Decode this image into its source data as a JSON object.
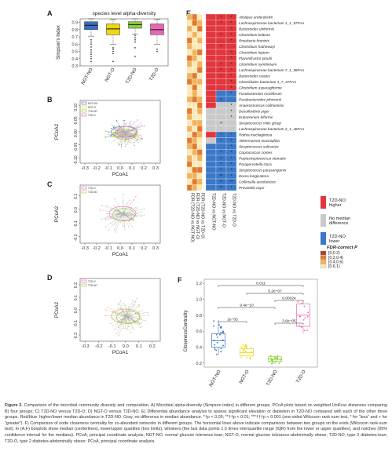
{
  "panel_letters": {
    "a": "A",
    "b": "B",
    "c": "C",
    "d": "D",
    "e": "E",
    "f": "F"
  },
  "colors": {
    "ngt_no": "#3b6fbf",
    "ngt_o": "#f1d60f",
    "t2d_no": "#8ccd3c",
    "t2d_o": "#ea66b4",
    "heat_red": "#e0363d",
    "heat_gray": "#c9c9c9",
    "heat_blue": "#3b78c8"
  },
  "chart_data": [
    {
      "id": "A",
      "type": "box",
      "title": "species level alpha-diversity",
      "ylabel": "Simpson's Index",
      "categories": [
        "NGT-NO",
        "NGT-O",
        "T2D-NO",
        "T2D-O"
      ],
      "ylim": [
        0.3,
        0.95
      ],
      "yticks": [
        "0.3",
        "0.4",
        "0.5",
        "0.6",
        "0.7",
        "0.8",
        "0.9"
      ],
      "boxes": [
        {
          "q1": 0.8,
          "median": 0.86,
          "q3": 0.91,
          "lo": 0.71,
          "hi": 0.95,
          "outliers": [
            0.66,
            0.63,
            0.6,
            0.56,
            0.52,
            0.49,
            0.46,
            0.43,
            0.4,
            0.36
          ]
        },
        {
          "q1": 0.73,
          "median": 0.81,
          "q3": 0.88,
          "lo": 0.6,
          "hi": 0.94,
          "outliers": [
            0.55,
            0.53,
            0.5,
            0.47,
            0.36
          ]
        },
        {
          "q1": 0.82,
          "median": 0.87,
          "q3": 0.91,
          "lo": 0.74,
          "hi": 0.95,
          "outliers": [
            0.72,
            0.69,
            0.66,
            0.63,
            0.55,
            0.43
          ]
        },
        {
          "q1": 0.73,
          "median": 0.8,
          "q3": 0.88,
          "lo": 0.6,
          "hi": 0.94,
          "outliers": [
            0.53,
            0.5
          ]
        }
      ]
    },
    {
      "id": "B",
      "type": "scatter",
      "xlabel": "PCoA1",
      "ylabel": "PCoA2",
      "xticks": [
        "-0.3",
        "-0.2",
        "-0.1",
        "0.0",
        "0.1",
        "0.2",
        "0.3"
      ],
      "yticks": [
        "-0.10",
        "-0.05",
        "0.00",
        "0.05",
        "0.10"
      ],
      "legend": [
        "NGT-NO",
        "NGT-O",
        "T2D-NO",
        "T2D-O"
      ]
    },
    {
      "id": "C",
      "type": "scatter",
      "xlabel": "PCoA1",
      "ylabel": "PCoA2",
      "xticks": [
        "-0.3",
        "-0.2",
        "-0.1",
        "0.0",
        "0.1",
        "0.2",
        "0.3"
      ],
      "yticks": [
        "-0.2",
        "-0.1",
        "0.0",
        "0.1"
      ],
      "legend": [
        "T2D-O",
        "T2D-NO"
      ]
    },
    {
      "id": "D",
      "type": "scatter",
      "xlabel": "PCoA1",
      "ylabel": "PCoA2",
      "xticks": [
        "-0.3",
        "-0.2",
        "-0.1",
        "0.0",
        "0.1",
        "0.2"
      ],
      "yticks": [
        "-0.2",
        "-0.1",
        "0.0",
        "0.1",
        "0.2"
      ],
      "legend": [
        "T2D-O",
        "T2D-NO"
      ]
    },
    {
      "id": "E",
      "type": "heatmap",
      "rows": [
        "Alistipes onderdonkii",
        "Lachnospiraceae bacterium 1_1_57FAA",
        "Bacteroides uniformis",
        "Clostridium bolteae",
        "Roseburia hominis",
        "Clostridium hathewayi",
        "Clostridium leptum",
        "Flavonifractor plautii",
        "Clostridium symbiosum",
        "Lachnospiraceae bacterium 7_1_58FAA",
        "Bacteroides ovatus",
        "Clostridiales bacterium 1_7_47FAA",
        "Clostridium asparagiforme",
        "Fusobacterium mortiferum",
        "Parabacteroides johnsonii",
        "Anaerostruncus colihominis",
        "Desulfovibrio piger",
        "Eubacterium biforme",
        "Streptococcus mitis group",
        "Lachnospiraceae bacterium 2_1_46FAA",
        "Rothia mucilaginosa",
        "Akkermansia muciniphila",
        "Streptococcus salivarius",
        "Coprococcus comes",
        "Peptostreptococcus stomatis",
        "Parapervotella clara",
        "Streptococcus parasanguinis",
        "Dorea longicatena",
        "Collinsella aerofaciens",
        "Prevotella copri"
      ],
      "col_labels": [
        "T2D-NO vs NGT-NO",
        "T2D-NO vs NGT-O",
        "T2D-NO vs T2D-O",
        "FDR (T2D-NO vs NGT-NO)",
        "FDR (T2D-NO vs NGT-O)",
        "FDR (T2D-NO vs T2D-O)"
      ],
      "direction": [
        [
          "higher",
          "higher",
          "higher"
        ],
        [
          "higher",
          "higher",
          "higher"
        ],
        [
          "higher",
          "higher",
          "higher"
        ],
        [
          "higher",
          "higher",
          "higher"
        ],
        [
          "higher",
          "higher",
          "higher"
        ],
        [
          "higher",
          "higher",
          "higher"
        ],
        [
          "higher",
          "higher",
          "higher"
        ],
        [
          "higher",
          "higher",
          "higher"
        ],
        [
          "higher",
          "higher",
          "higher"
        ],
        [
          "higher",
          "higher",
          "higher"
        ],
        [
          "higher",
          "higher",
          "higher"
        ],
        [
          "higher",
          "higher",
          "higher"
        ],
        [
          "higher",
          "higher",
          "higher"
        ],
        [
          "higher",
          "lower",
          "lower"
        ],
        [
          "higher",
          "lower",
          "lower"
        ],
        [
          "higher",
          "none",
          "none"
        ],
        [
          "none",
          "none",
          "none"
        ],
        [
          "none",
          "none",
          "none"
        ],
        [
          "none",
          "none",
          "none"
        ],
        [
          "none",
          "none",
          "none"
        ],
        [
          "higher",
          "lower",
          "lower"
        ],
        [
          "none",
          "lower",
          "lower"
        ],
        [
          "lower",
          "lower",
          "lower"
        ],
        [
          "lower",
          "lower",
          "lower"
        ],
        [
          "lower",
          "lower",
          "lower"
        ],
        [
          "lower",
          "lower",
          "lower"
        ],
        [
          "lower",
          "lower",
          "lower"
        ],
        [
          "lower",
          "lower",
          "lower"
        ],
        [
          "lower",
          "lower",
          "lower"
        ],
        [
          "lower",
          "lower",
          "lower"
        ]
      ],
      "stars": [
        [
          "",
          "*",
          "*"
        ],
        [
          "",
          "*",
          "*"
        ],
        [
          "",
          "",
          "*"
        ],
        [
          "",
          "*",
          "*"
        ],
        [
          "",
          "",
          "*"
        ],
        [
          "",
          "*",
          ""
        ],
        [
          "",
          "",
          "*"
        ],
        [
          "",
          "",
          "*"
        ],
        [
          "",
          "*",
          "*"
        ],
        [
          "",
          "*",
          "*"
        ],
        [
          "",
          "*",
          "*"
        ],
        [
          "",
          "",
          "*"
        ],
        [
          "",
          "",
          "*"
        ],
        [
          "",
          "",
          "*"
        ],
        [
          "",
          "+",
          ""
        ],
        [
          "",
          "",
          "*"
        ],
        [
          "",
          "",
          "*"
        ],
        [
          "",
          "",
          "*"
        ],
        [
          "",
          "+",
          ""
        ],
        [
          "",
          "",
          ""
        ],
        [
          "",
          "*",
          "*"
        ],
        [
          "",
          "*",
          "*"
        ],
        [
          "",
          "",
          "*"
        ],
        [
          "",
          "*",
          "*"
        ],
        [
          "",
          "+",
          "*"
        ],
        [
          "",
          "*",
          "*"
        ],
        [
          "",
          "*",
          "*"
        ],
        [
          "",
          "**",
          "*"
        ],
        [
          "",
          "**",
          "**"
        ],
        [
          "",
          "**",
          "*"
        ]
      ],
      "fdr_bins": [
        [
          2,
          1,
          3
        ],
        [
          3,
          1,
          2
        ],
        [
          2,
          3,
          1
        ],
        [
          3,
          2,
          3
        ],
        [
          1,
          3,
          2
        ],
        [
          2,
          3,
          3
        ],
        [
          3,
          2,
          1
        ],
        [
          1,
          2,
          3
        ],
        [
          2,
          3,
          2
        ],
        [
          3,
          3,
          1
        ],
        [
          2,
          1,
          3
        ],
        [
          1,
          2,
          2
        ],
        [
          3,
          1,
          3
        ],
        [
          3,
          2,
          3
        ],
        [
          2,
          1,
          2
        ],
        [
          3,
          3,
          1
        ],
        [
          1,
          3,
          2
        ],
        [
          2,
          3,
          3
        ],
        [
          3,
          2,
          2
        ],
        [
          2,
          3,
          1
        ],
        [
          3,
          1,
          2
        ],
        [
          1,
          2,
          3
        ],
        [
          2,
          1,
          3
        ],
        [
          3,
          2,
          1
        ],
        [
          2,
          3,
          2
        ],
        [
          1,
          3,
          3
        ],
        [
          3,
          1,
          1
        ],
        [
          2,
          2,
          3
        ],
        [
          3,
          1,
          2
        ],
        [
          1,
          2,
          3
        ]
      ],
      "legend_direction": [
        {
          "key": "higher",
          "label": "T2D-NO higher"
        },
        {
          "key": "none",
          "label": "No median difference"
        },
        {
          "key": "lower",
          "label": "T2D-NO lower"
        }
      ],
      "fdr_legend": {
        "title": "FDR-correct P",
        "bins": [
          "[0,0.2)",
          "[0.2,0.4)",
          "[0.4,0.6)",
          "[0.6,1)"
        ],
        "colors": [
          "#c0392b",
          "#e07a2d",
          "#f2b35c",
          "#fbe8b8"
        ]
      }
    },
    {
      "id": "F",
      "type": "box",
      "ylabel": "ClosenessCentrality",
      "categories": [
        "NGT-NO",
        "NGT-O",
        "T2D-NO",
        "T2D-O"
      ],
      "ylim": [
        0.15,
        1.25
      ],
      "yticks": [
        "0.2",
        "0.4",
        "0.6",
        "0.8",
        "1.0",
        "1.2"
      ],
      "boxes": [
        {
          "q1": 0.4,
          "median": 0.48,
          "q3": 0.57,
          "lo": 0.3,
          "hi": 0.74
        },
        {
          "q1": 0.29,
          "median": 0.33,
          "q3": 0.38,
          "lo": 0.25,
          "hi": 0.44
        },
        {
          "q1": 0.22,
          "median": 0.25,
          "q3": 0.28,
          "lo": 0.19,
          "hi": 0.3
        },
        {
          "q1": 0.66,
          "median": 0.8,
          "q3": 0.94,
          "lo": 0.57,
          "hi": 0.98
        }
      ],
      "comparisons": [
        {
          "from": 0,
          "to": 3,
          "label": "0.011"
        },
        {
          "from": 1,
          "to": 3,
          "label": "5.2e−07"
        },
        {
          "from": 2,
          "to": 3,
          "label": "0.00024"
        },
        {
          "from": 0,
          "to": 2,
          "label": "9.4e−10"
        },
        {
          "from": 0,
          "to": 1,
          "label": "1e−05"
        },
        {
          "from": 2,
          "to": 3,
          "label": "3.6e−05",
          "low": true
        }
      ]
    }
  ],
  "caption": {
    "title": "Figure 2.",
    "text": "Comparison of the microbial community diversity and composition. A) Microbial alpha-diversity (Simpson index) in different groups. PCoA plots based on weighted UniFrac distances comparing B) four groups; C) T2D-NO versus T2D-O; D) NGT-O versus T2D-NO. E) Differential abundance analysis to assess significant elevation or depletion in T2D-NO compared with each of the other three groups. Red/blue: higher/lower median abundance in T2D-NO. Gray, no difference in median abundance. *†p < 0.05; **††p < 0.01; ***†††p < 0.001 (one-sided Wilcoxon rank-sum test, * for “less” and + for “greater”). F) Comparison of node closeness centrality for co-abundant networks in different groups. The horizontal lines above indicate comparisons between two groups on the ends (Wilcoxon rank-sum test). In (A,F) boxplots show median (centerlines), lower/upper quartiles (box limits), whiskers (the last data points 1.5 times interquartile range (IQR) from the lower or upper quartiles), and notches (95% confidence interval for the medians). PCoA, principal coordinate analysis; NGT-NO, normal glucose tolerance-lean; NGT-O, normal glucose tolerance-abdominally obese; T2D-NO, type 2 diabetes-lean; T2D-O, type 2 diabetes-abdominally obese; PCoA, principal coordinate analysis."
  }
}
